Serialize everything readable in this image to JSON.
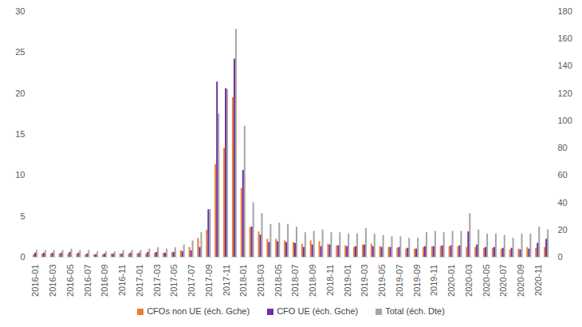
{
  "chart_data": {
    "type": "bar",
    "categories": [
      "2016-01",
      null,
      "2016-03",
      null,
      "2016-05",
      null,
      "2016-07",
      null,
      "2016-09",
      null,
      "2016-11",
      null,
      "2017-01",
      null,
      "2017-03",
      null,
      "2017-05",
      null,
      "2017-07",
      null,
      "2017-09",
      null,
      "2017-11",
      null,
      "2018-01",
      null,
      "2018-03",
      null,
      "2018-05",
      null,
      "2018-07",
      null,
      "2018-09",
      null,
      "2018-11",
      null,
      "2019-01",
      null,
      "2019-03",
      null,
      "2019-05",
      null,
      "2019-07",
      null,
      "2019-09",
      null,
      "2019-11",
      null,
      "2020-01",
      null,
      "2020-03",
      null,
      "2020-05",
      null,
      "2020-07",
      null,
      "2020-09",
      null,
      "2020-11",
      null
    ],
    "series": [
      {
        "name": "CFOs non UE (éch. Gche)",
        "color": "#ed7d31",
        "values": [
          0.3,
          0.4,
          0.4,
          0.4,
          0.4,
          0.4,
          0.3,
          0.3,
          0.3,
          0.4,
          0.4,
          0.4,
          0.4,
          0.4,
          0.5,
          0.5,
          0.6,
          0.8,
          1.2,
          2.3,
          3.3,
          11.3,
          13.3,
          19.5,
          8.4,
          3.6,
          3.1,
          2.2,
          2.2,
          2.0,
          1.8,
          1.6,
          2.0,
          1.9,
          1.6,
          1.4,
          1.4,
          1.2,
          1.5,
          1.6,
          1.3,
          1.2,
          1.1,
          1.0,
          1.0,
          1.2,
          1.3,
          1.3,
          1.3,
          1.3,
          1.2,
          1.2,
          1.1,
          1.1,
          1.0,
          0.9,
          1.0,
          1.2,
          1.1,
          1.2
        ]
      },
      {
        "name": "CFO UE (éch. Gche)",
        "color": "#7030a0",
        "values": [
          0.5,
          0.5,
          0.5,
          0.5,
          0.6,
          0.5,
          0.4,
          0.3,
          0.4,
          0.4,
          0.4,
          0.5,
          0.5,
          0.6,
          0.6,
          0.5,
          0.6,
          0.7,
          0.8,
          1.2,
          5.8,
          21.4,
          20.6,
          24.2,
          10.6,
          3.7,
          2.7,
          1.8,
          1.9,
          1.8,
          1.7,
          1.2,
          1.5,
          1.3,
          1.5,
          1.4,
          1.3,
          1.3,
          1.5,
          1.3,
          1.2,
          1.2,
          1.2,
          1.1,
          1.0,
          1.3,
          1.3,
          1.4,
          1.4,
          1.4,
          3.1,
          1.5,
          1.2,
          1.2,
          1.1,
          1.1,
          0.9,
          1.0,
          1.7,
          2.2
        ]
      },
      {
        "name": "Total (éch. Dte)",
        "color": "#a5a5a5",
        "axis": "y2",
        "values": [
          5,
          5,
          5,
          5,
          6,
          5,
          5,
          4,
          4,
          4,
          5,
          5,
          5,
          6,
          7,
          6,
          7,
          9,
          12,
          18,
          35,
          105,
          123,
          167,
          96,
          40,
          32,
          24,
          25,
          24,
          22,
          18,
          19,
          20,
          18,
          18,
          17,
          17,
          21,
          17,
          16,
          15,
          15,
          14,
          14,
          18,
          19,
          18,
          19,
          19,
          32,
          20,
          17,
          17,
          16,
          14,
          17,
          17,
          22,
          20
        ]
      }
    ],
    "ylim": [
      0,
      30
    ],
    "yticks": [
      0,
      5,
      10,
      15,
      20,
      25,
      30
    ],
    "y2lim": [
      0,
      180
    ],
    "y2ticks": [
      0,
      20,
      40,
      60,
      80,
      100,
      120,
      140,
      160,
      180
    ],
    "grid": false,
    "legend": "bottom"
  }
}
